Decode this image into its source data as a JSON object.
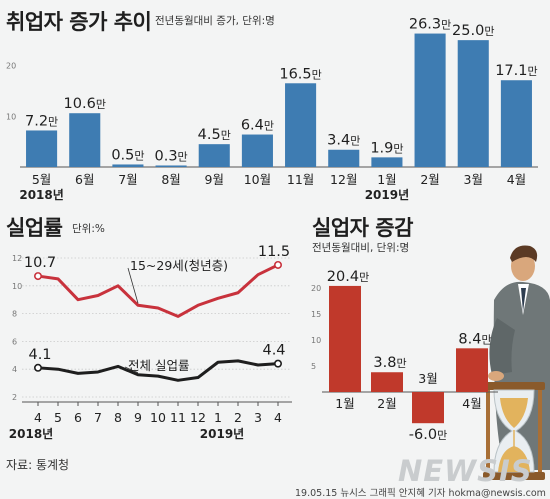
{
  "source": "자료: 통계청",
  "credit": "19.05.15 뉴시스 그래픽 안지혜 기자 hokma@newsis.com",
  "logo_text": "NEWSIS",
  "colors": {
    "bar_blue": "#3e7cb2",
    "bar_red": "#c0392b",
    "line_red": "#c8323c",
    "line_black": "#1e1e1e",
    "background": "#f3f4f4"
  },
  "chart_data": [
    {
      "id": "employment",
      "type": "bar",
      "title": "취업자 증가 추이",
      "subtitle": "전년동월대비 증가, 단위:명",
      "categories": [
        "5월",
        "6월",
        "7월",
        "8월",
        "9월",
        "10월",
        "11월",
        "12월",
        "1월",
        "2월",
        "3월",
        "4월"
      ],
      "year_labels": [
        {
          "text": "2018년",
          "category_index": 0
        },
        {
          "text": "2019년",
          "category_index": 8
        }
      ],
      "values": [
        7.2,
        10.6,
        0.5,
        0.3,
        4.5,
        6.4,
        16.5,
        3.4,
        1.9,
        26.3,
        25.0,
        17.1
      ],
      "value_labels": [
        "7.2",
        "10.6",
        "0.5",
        "0.3",
        "4.5",
        "6.4",
        "16.5",
        "3.4",
        "1.9",
        "26.3",
        "25.0",
        "17.1"
      ],
      "value_unit": "만",
      "y_ticks": [
        10,
        20
      ],
      "ylim": [
        0,
        27
      ],
      "color": "#3e7cb2"
    },
    {
      "id": "unemployment-rate",
      "type": "line",
      "title": "실업률",
      "subtitle": "단위:%",
      "categories": [
        "4",
        "5",
        "6",
        "7",
        "8",
        "9",
        "10",
        "11",
        "12",
        "1",
        "2",
        "3",
        "4"
      ],
      "year_labels": [
        {
          "text": "2018년",
          "category_index": 0
        },
        {
          "text": "2019년",
          "category_index": 9
        }
      ],
      "y_ticks": [
        2,
        4,
        6,
        8,
        10,
        12
      ],
      "ylim": [
        2,
        12
      ],
      "grid": true,
      "series": [
        {
          "name": "15~29세(청년층)",
          "values": [
            10.7,
            10.5,
            9.0,
            9.3,
            10.0,
            8.6,
            8.4,
            7.8,
            8.6,
            9.1,
            9.5,
            10.8,
            11.5
          ],
          "start_label": "10.7",
          "end_label": "11.5",
          "color": "#c8323c"
        },
        {
          "name": "전체 실업률",
          "values": [
            4.1,
            4.0,
            3.7,
            3.8,
            4.2,
            3.6,
            3.5,
            3.2,
            3.4,
            4.5,
            4.6,
            4.3,
            4.4
          ],
          "start_label": "4.1",
          "end_label": "4.4",
          "color": "#1e1e1e"
        }
      ]
    },
    {
      "id": "unemployed-change",
      "type": "bar",
      "title": "실업자 증감",
      "subtitle": "전년동월대비, 단위:명",
      "categories": [
        "1월",
        "2월",
        "3월",
        "4월"
      ],
      "values": [
        20.4,
        3.8,
        -6.0,
        8.4
      ],
      "value_labels": [
        "20.4",
        "3.8",
        "-6.0",
        "8.4"
      ],
      "value_unit": "만",
      "y_ticks": [
        5,
        10,
        15,
        20
      ],
      "ylim": [
        -8,
        22
      ],
      "color": "#c0392b"
    }
  ]
}
